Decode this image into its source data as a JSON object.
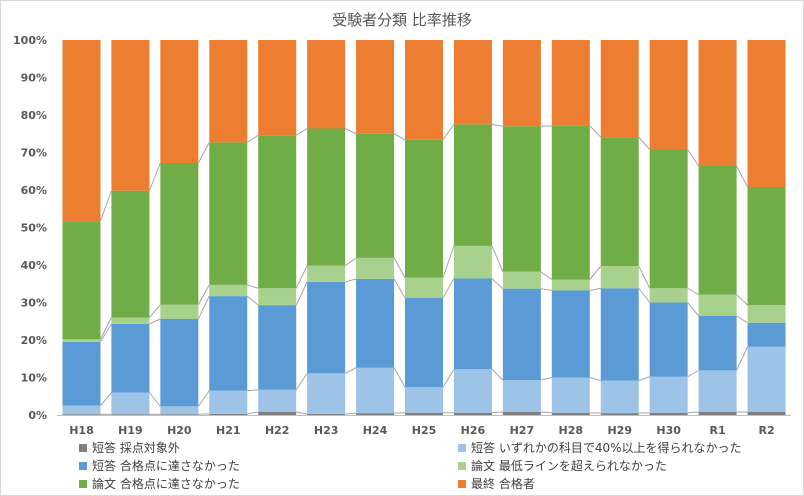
{
  "chart_data": {
    "type": "bar",
    "stacked": true,
    "title": "受験者分類 比率推移",
    "categories": [
      "H18",
      "H19",
      "H20",
      "H21",
      "H22",
      "H23",
      "H24",
      "H25",
      "H26",
      "H27",
      "H28",
      "H29",
      "H30",
      "R1",
      "R2"
    ],
    "series": [
      {
        "name": "短答 採点対象外",
        "color": "#7f7f7f",
        "values": [
          0.2,
          0.2,
          0.2,
          0.3,
          0.8,
          0.3,
          0.5,
          0.6,
          0.6,
          0.8,
          0.6,
          0.5,
          0.6,
          0.8,
          0.8
        ]
      },
      {
        "name": "短答 いずれかの科目で40%以上を得られなかった",
        "color": "#9dc3e6",
        "values": [
          2.3,
          5.8,
          2.1,
          6.2,
          5.9,
          10.8,
          12.1,
          6.8,
          11.6,
          8.5,
          9.4,
          8.7,
          9.6,
          11.1,
          17.4
        ]
      },
      {
        "name": "短答 合格点に達さなかった",
        "color": "#5b9bd5",
        "values": [
          17.0,
          18.3,
          23.3,
          25.2,
          22.6,
          24.4,
          23.7,
          23.8,
          24.2,
          24.4,
          23.2,
          24.6,
          19.8,
          14.5,
          6.4
        ]
      },
      {
        "name": "論文 最低ラインを超えられなかった",
        "color": "#a9d18e",
        "values": [
          0.7,
          1.7,
          3.8,
          3.0,
          4.5,
          4.3,
          5.6,
          5.4,
          8.7,
          4.5,
          2.9,
          5.9,
          3.8,
          5.7,
          4.7
        ]
      },
      {
        "name": "論文 合格点に達さなかった",
        "color": "#70ad47",
        "values": [
          31.5,
          33.8,
          37.8,
          38.0,
          40.8,
          36.6,
          33.1,
          36.8,
          32.4,
          38.8,
          41.0,
          34.4,
          37.0,
          34.3,
          31.5
        ]
      },
      {
        "name": "最終 合格者",
        "color": "#ed7d31",
        "values": [
          48.3,
          40.2,
          32.8,
          27.3,
          25.4,
          23.6,
          25.0,
          26.6,
          22.5,
          23.0,
          22.9,
          25.9,
          29.2,
          33.6,
          39.2
        ]
      }
    ],
    "ylim": [
      0,
      100
    ],
    "yticks": [
      0,
      10,
      20,
      30,
      40,
      50,
      60,
      70,
      80,
      90,
      100
    ],
    "yticklabels": [
      "0%",
      "10%",
      "20%",
      "30%",
      "40%",
      "50%",
      "60%",
      "70%",
      "80%",
      "90%",
      "100%"
    ],
    "grid": false,
    "series_lines": true,
    "legend_position": "bottom"
  }
}
